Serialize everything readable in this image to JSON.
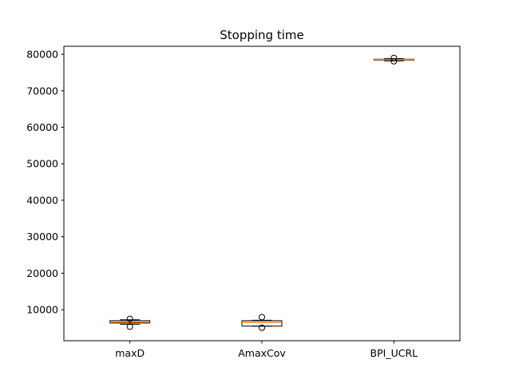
{
  "chart_data": {
    "type": "box",
    "title": "Stopping time",
    "xlabel": "",
    "ylabel": "",
    "categories": [
      "maxD",
      "AmaxCov",
      "BPI_UCRL"
    ],
    "ylim": [
      1500,
      82200
    ],
    "yticks": [
      10000,
      20000,
      30000,
      40000,
      50000,
      60000,
      70000,
      80000
    ],
    "boxes": [
      {
        "label": "maxD",
        "whislo": 6000,
        "q1": 6350,
        "med": 6600,
        "q3": 7000,
        "whishi": 7250,
        "fliers": [
          5350,
          7500
        ]
      },
      {
        "label": "AmaxCov",
        "whislo": 5500,
        "q1": 5500,
        "med": 6550,
        "q3": 7000,
        "whishi": 7100,
        "fliers": [
          5050,
          7950
        ]
      },
      {
        "label": "BPI_UCRL",
        "whislo": 78200,
        "q1": 78400,
        "med": 78550,
        "q3": 78650,
        "whishi": 78800,
        "fliers": [
          78100,
          79000
        ]
      }
    ],
    "grid": false,
    "legend": "none",
    "colors": {
      "box": "#000000",
      "median": "#ff7f0e",
      "flier": "#000000",
      "axes": "#000000"
    }
  }
}
